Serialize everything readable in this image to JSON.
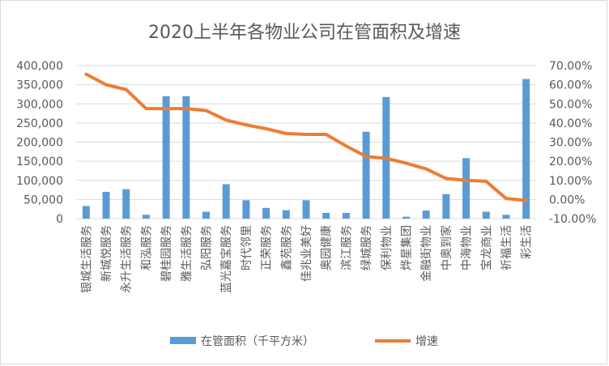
{
  "chart_data": {
    "type": "bar",
    "title": "2020上半年各物业公司在管面积及增速",
    "categories": [
      "银城生活服务",
      "新城悦服务",
      "永升生活服务",
      "和泓服务",
      "碧桂园服务",
      "雅生活服务",
      "弘阳服务",
      "蓝光嘉宝服务",
      "时代邻里",
      "正荣服务",
      "鑫苑服务",
      "佳兆业美好",
      "奥园健康",
      "滨江服务",
      "绿城服务",
      "保利物业",
      "烨星集团",
      "金融街物业",
      "中奥到家",
      "中海物业",
      "宝龙商业",
      "祈福生活",
      "彩生活"
    ],
    "series": [
      {
        "name": "在管面积（千平方米）",
        "type": "bar",
        "axis": "left",
        "color": "#5b9bd5",
        "values": [
          33000,
          70000,
          77000,
          10000,
          320000,
          320000,
          18000,
          90000,
          48000,
          28000,
          22000,
          48000,
          15000,
          15000,
          227000,
          318000,
          5000,
          21000,
          64000,
          158000,
          18000,
          10000,
          365000
        ]
      },
      {
        "name": "增速",
        "type": "line",
        "axis": "right",
        "color": "#ed7d31",
        "values": [
          65.5,
          60.0,
          57.5,
          47.5,
          47.5,
          47.5,
          46.5,
          41.5,
          39.0,
          37.0,
          34.5,
          34.0,
          34.0,
          28.0,
          22.5,
          21.5,
          19.0,
          16.0,
          11.0,
          10.0,
          9.5,
          0.5,
          -0.5
        ]
      }
    ],
    "y_left": {
      "min": 0,
      "max": 400000,
      "step": 50000,
      "ticks": [
        "0",
        "50,000",
        "100,000",
        "150,000",
        "200,000",
        "250,000",
        "300,000",
        "350,000",
        "400,000"
      ]
    },
    "y_right": {
      "min": -10,
      "max": 70,
      "step": 10,
      "ticks": [
        "-10.00%",
        "0.00%",
        "10.00%",
        "20.00%",
        "30.00%",
        "40.00%",
        "50.00%",
        "60.00%",
        "70.00%"
      ]
    },
    "grid": true,
    "legend_position": "bottom"
  }
}
